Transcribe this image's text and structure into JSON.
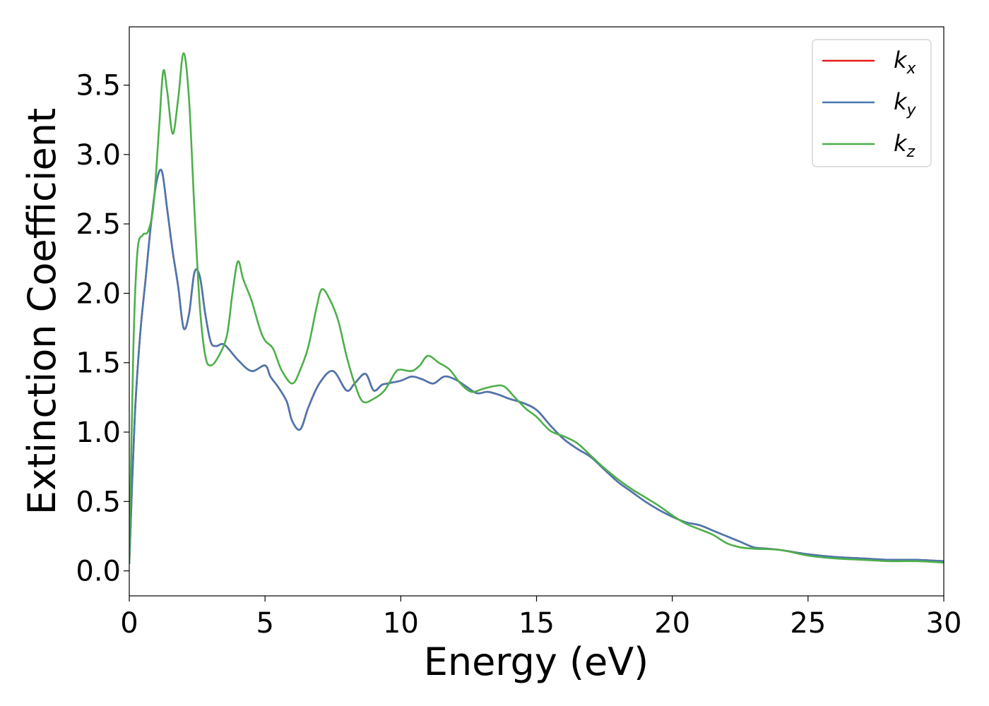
{
  "chart_data": {
    "type": "line",
    "title": "",
    "xlabel": "Energy (eV)",
    "ylabel": "Extinction Coefficient",
    "xlim": [
      0,
      30
    ],
    "ylim": [
      -0.18,
      3.92
    ],
    "xticks": [
      0,
      5,
      10,
      15,
      20,
      25,
      30
    ],
    "xtick_labels": [
      "0",
      "5",
      "10",
      "15",
      "20",
      "25",
      "30"
    ],
    "yticks": [
      0.0,
      0.5,
      1.0,
      1.5,
      2.0,
      2.5,
      3.0,
      3.5
    ],
    "ytick_labels": [
      "0.0",
      "0.5",
      "1.0",
      "1.5",
      "2.0",
      "2.5",
      "3.0",
      "3.5"
    ],
    "grid": false,
    "legend_position": "top-right",
    "series": [
      {
        "name": "k_x",
        "label_base": "k",
        "label_sub": "x",
        "color": "#e41a1c",
        "x": [
          0,
          0.2,
          0.4,
          0.6,
          0.8,
          1.0,
          1.2,
          1.4,
          1.6,
          1.8,
          2.0,
          2.2,
          2.4,
          2.6,
          2.8,
          3.0,
          3.2,
          3.5,
          4.0,
          4.5,
          5.0,
          5.2,
          5.5,
          5.8,
          6.0,
          6.3,
          6.6,
          7.0,
          7.5,
          8.0,
          8.3,
          8.7,
          9.0,
          9.3,
          9.5,
          10.0,
          10.4,
          10.8,
          11.2,
          11.6,
          12.0,
          12.4,
          12.8,
          13.2,
          13.6,
          14.0,
          14.5,
          15.0,
          15.5,
          16.0,
          16.5,
          17.0,
          17.5,
          18.0,
          18.5,
          19.0,
          19.5,
          20.0,
          20.5,
          21.0,
          21.5,
          22.0,
          22.5,
          23.0,
          23.5,
          24.0,
          25.0,
          26.0,
          27.0,
          28.0,
          29.0,
          30.0
        ],
        "y": [
          0.05,
          1.1,
          1.7,
          2.1,
          2.5,
          2.8,
          2.88,
          2.6,
          2.3,
          2.05,
          1.75,
          1.85,
          2.15,
          2.12,
          1.85,
          1.65,
          1.62,
          1.63,
          1.52,
          1.44,
          1.48,
          1.4,
          1.32,
          1.22,
          1.08,
          1.02,
          1.18,
          1.35,
          1.44,
          1.3,
          1.35,
          1.42,
          1.3,
          1.34,
          1.35,
          1.37,
          1.4,
          1.38,
          1.35,
          1.4,
          1.38,
          1.33,
          1.28,
          1.29,
          1.27,
          1.24,
          1.21,
          1.16,
          1.05,
          0.95,
          0.88,
          0.82,
          0.73,
          0.64,
          0.57,
          0.5,
          0.44,
          0.39,
          0.35,
          0.33,
          0.29,
          0.25,
          0.21,
          0.17,
          0.16,
          0.15,
          0.12,
          0.1,
          0.09,
          0.08,
          0.08,
          0.07
        ]
      },
      {
        "name": "k_y",
        "label_base": "k",
        "label_sub": "y",
        "color": "#4a78b0",
        "x": [
          0,
          0.2,
          0.4,
          0.6,
          0.8,
          1.0,
          1.2,
          1.4,
          1.6,
          1.8,
          2.0,
          2.2,
          2.4,
          2.6,
          2.8,
          3.0,
          3.2,
          3.5,
          4.0,
          4.5,
          5.0,
          5.2,
          5.5,
          5.8,
          6.0,
          6.3,
          6.6,
          7.0,
          7.5,
          8.0,
          8.3,
          8.7,
          9.0,
          9.3,
          9.5,
          10.0,
          10.4,
          10.8,
          11.2,
          11.6,
          12.0,
          12.4,
          12.8,
          13.2,
          13.6,
          14.0,
          14.5,
          15.0,
          15.5,
          16.0,
          16.5,
          17.0,
          17.5,
          18.0,
          18.5,
          19.0,
          19.5,
          20.0,
          20.5,
          21.0,
          21.5,
          22.0,
          22.5,
          23.0,
          23.5,
          24.0,
          25.0,
          26.0,
          27.0,
          28.0,
          29.0,
          30.0
        ],
        "y": [
          0.05,
          1.1,
          1.7,
          2.1,
          2.5,
          2.8,
          2.88,
          2.6,
          2.3,
          2.05,
          1.75,
          1.85,
          2.15,
          2.12,
          1.85,
          1.65,
          1.62,
          1.63,
          1.52,
          1.44,
          1.48,
          1.4,
          1.32,
          1.22,
          1.08,
          1.02,
          1.18,
          1.35,
          1.44,
          1.3,
          1.35,
          1.42,
          1.3,
          1.34,
          1.35,
          1.37,
          1.4,
          1.38,
          1.35,
          1.4,
          1.38,
          1.33,
          1.28,
          1.29,
          1.27,
          1.24,
          1.21,
          1.16,
          1.05,
          0.95,
          0.88,
          0.82,
          0.73,
          0.64,
          0.57,
          0.5,
          0.44,
          0.39,
          0.35,
          0.33,
          0.29,
          0.25,
          0.21,
          0.17,
          0.16,
          0.15,
          0.12,
          0.1,
          0.09,
          0.08,
          0.08,
          0.07
        ]
      },
      {
        "name": "k_z",
        "label_base": "k",
        "label_sub": "z",
        "color": "#4daf4a",
        "x": [
          0,
          0.15,
          0.3,
          0.5,
          0.7,
          0.9,
          1.1,
          1.25,
          1.4,
          1.6,
          1.8,
          2.0,
          2.2,
          2.4,
          2.6,
          2.8,
          3.0,
          3.3,
          3.6,
          3.8,
          4.0,
          4.2,
          4.5,
          4.8,
          5.0,
          5.3,
          5.6,
          6.0,
          6.3,
          6.6,
          6.9,
          7.1,
          7.4,
          7.7,
          8.0,
          8.3,
          8.6,
          9.0,
          9.4,
          9.8,
          10.0,
          10.4,
          10.7,
          11.0,
          11.4,
          11.8,
          12.2,
          12.6,
          13.0,
          13.4,
          13.8,
          14.2,
          14.6,
          15.0,
          15.5,
          16.0,
          16.5,
          17.0,
          17.5,
          18.0,
          18.5,
          19.0,
          19.5,
          20.0,
          20.5,
          21.0,
          21.5,
          22.0,
          22.5,
          23.0,
          24.0,
          25.0,
          26.0,
          27.0,
          28.0,
          29.0,
          30.0
        ],
        "y": [
          0.05,
          1.6,
          2.3,
          2.42,
          2.45,
          2.65,
          3.2,
          3.6,
          3.45,
          3.15,
          3.4,
          3.73,
          3.4,
          2.6,
          1.9,
          1.55,
          1.48,
          1.55,
          1.7,
          2.0,
          2.23,
          2.1,
          1.95,
          1.75,
          1.66,
          1.6,
          1.45,
          1.35,
          1.45,
          1.62,
          1.9,
          2.03,
          1.95,
          1.8,
          1.55,
          1.35,
          1.22,
          1.24,
          1.3,
          1.43,
          1.45,
          1.44,
          1.48,
          1.55,
          1.5,
          1.45,
          1.35,
          1.29,
          1.31,
          1.33,
          1.33,
          1.25,
          1.17,
          1.11,
          1.01,
          0.97,
          0.92,
          0.83,
          0.74,
          0.66,
          0.59,
          0.53,
          0.47,
          0.4,
          0.34,
          0.3,
          0.26,
          0.2,
          0.17,
          0.16,
          0.15,
          0.11,
          0.09,
          0.08,
          0.07,
          0.07,
          0.06
        ]
      }
    ]
  }
}
